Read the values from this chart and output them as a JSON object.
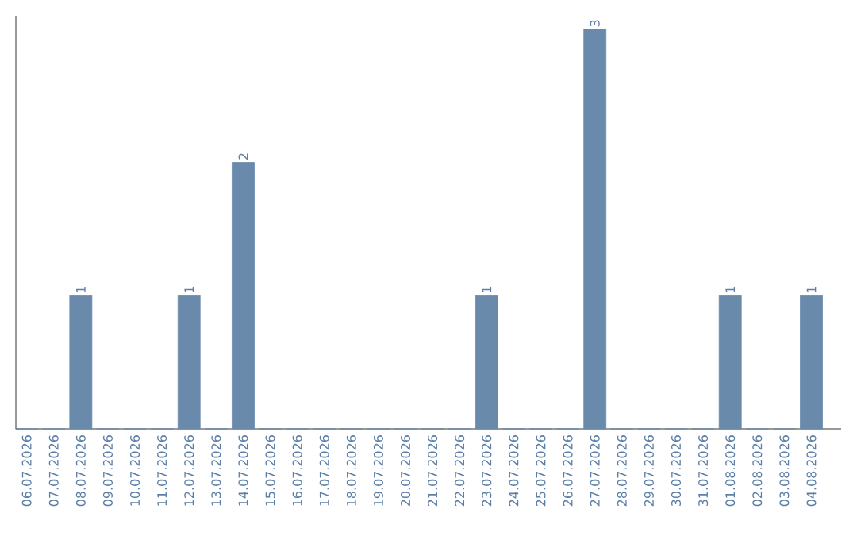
{
  "chart_data": {
    "type": "bar",
    "categories": [
      "06.07.2026",
      "07.07.2026",
      "08.07.2026",
      "09.07.2026",
      "10.07.2026",
      "11.07.2026",
      "12.07.2026",
      "13.07.2026",
      "14.07.2026",
      "15.07.2026",
      "16.07.2026",
      "17.07.2026",
      "18.07.2026",
      "19.07.2026",
      "20.07.2026",
      "21.07.2026",
      "22.07.2026",
      "23.07.2026",
      "24.07.2026",
      "25.07.2026",
      "26.07.2026",
      "27.07.2026",
      "28.07.2026",
      "29.07.2026",
      "30.07.2026",
      "31.07.2026",
      "01.08.2026",
      "02.08.2026",
      "03.08.2026",
      "04.08.2026"
    ],
    "values": [
      0,
      0,
      1,
      0,
      0,
      0,
      1,
      0,
      2,
      0,
      0,
      0,
      0,
      0,
      0,
      0,
      0,
      1,
      0,
      0,
      0,
      3,
      0,
      0,
      0,
      0,
      1,
      0,
      0,
      1
    ],
    "value_labels": [
      null,
      null,
      "1",
      null,
      null,
      null,
      "1",
      null,
      "2",
      null,
      null,
      null,
      null,
      null,
      null,
      null,
      null,
      "1",
      null,
      null,
      null,
      "3",
      null,
      null,
      null,
      null,
      "1",
      null,
      null,
      "1"
    ],
    "color": "#6a8aab",
    "ylim": [
      0,
      3.1
    ],
    "tick_labels": "x"
  }
}
